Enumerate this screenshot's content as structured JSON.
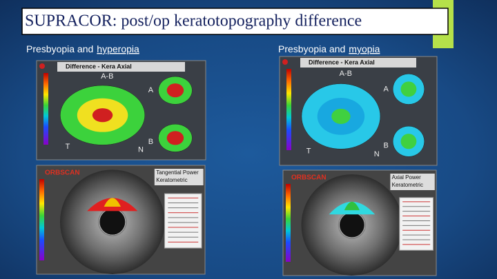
{
  "title": "SUPRACOR: post/op keratotopography difference",
  "columns": [
    {
      "label_prefix": "Presbyopia  and",
      "label_emphasis": "hyperopia",
      "top_panel": {
        "heading": "Difference - Kera Axial",
        "labels": [
          "A-B",
          "A",
          "B",
          "N",
          "T"
        ]
      },
      "bottom_panel": {
        "brand": "ORBSCAN",
        "heading": [
          "Tangential Power",
          "Keratometric"
        ]
      }
    },
    {
      "label_prefix": "Presbyopia  and",
      "label_emphasis": "myopia",
      "top_panel": {
        "heading": "Difference - Kera Axial",
        "labels": [
          "A-B",
          "A",
          "B",
          "N",
          "T"
        ]
      },
      "bottom_panel": {
        "brand": "ORBSCAN",
        "heading": [
          "Axial Power",
          "Keratometric"
        ]
      }
    }
  ]
}
